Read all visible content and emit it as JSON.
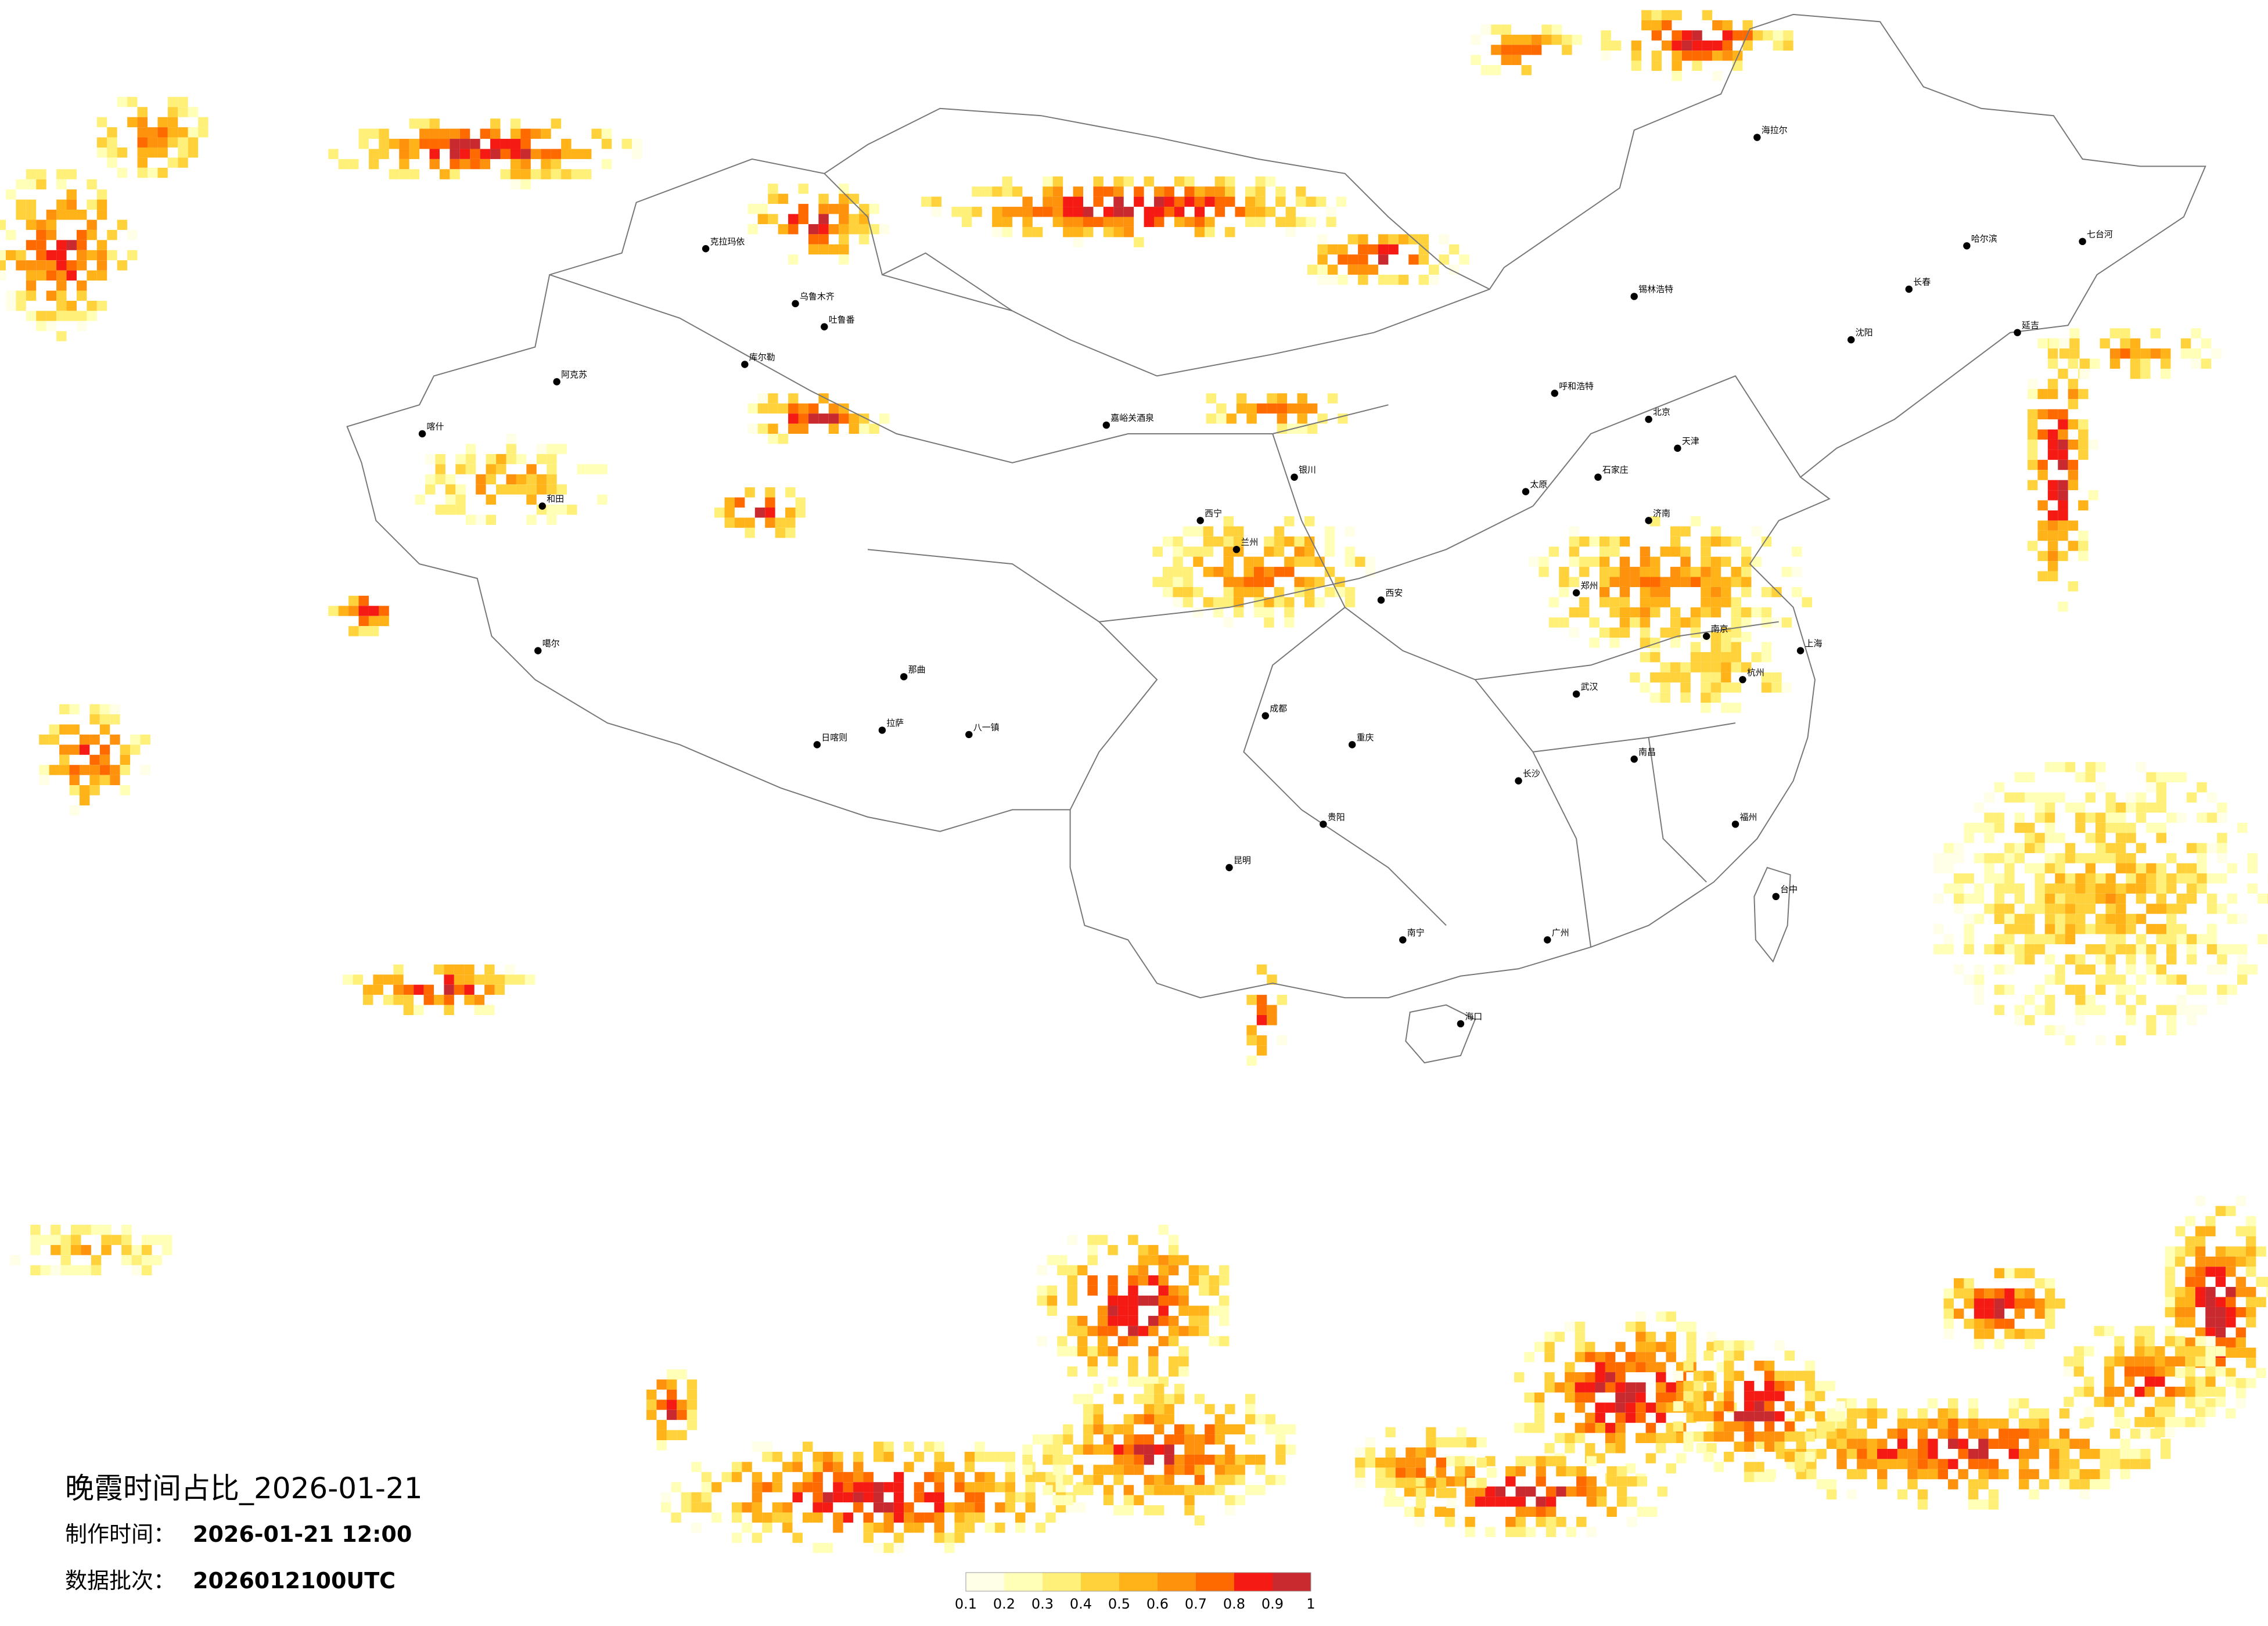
{
  "title": "晚霞时间占比_2026-01-21",
  "production_label": "制作时间：",
  "production_time": "2026-01-21 12:00",
  "batch_label": "数据批次：",
  "batch": "2026012100UTC",
  "colorbar": {
    "ticks": [
      0.1,
      0.2,
      0.3,
      0.4,
      0.5,
      0.6,
      0.7,
      0.8,
      0.9,
      1
    ],
    "colors": [
      "#fffee6",
      "#ffffb8",
      "#fff07a",
      "#ffd23c",
      "#ffb319",
      "#ff920c",
      "#ff6a00",
      "#f51a14",
      "#c82a30"
    ]
  },
  "cities": [
    "克拉玛依",
    "乌鲁木齐",
    "吐鲁番",
    "库尔勒",
    "阿克苏",
    "喀什",
    "和田",
    "噶尔",
    "日喀则",
    "拉萨",
    "八一镇",
    "那曲",
    "嘉峪关酒泉",
    "西宁",
    "兰州",
    "银川",
    "呼和浩特",
    "北京",
    "天津",
    "石家庄",
    "太原",
    "郑州",
    "西安",
    "成都",
    "重庆",
    "昆明",
    "贵阳",
    "南宁",
    "广州",
    "长沙",
    "武汉",
    "南昌",
    "杭州",
    "上海",
    "南京",
    "福州",
    "台中",
    "济南",
    "沈阳",
    "长春",
    "哈尔滨",
    "海口",
    "海拉尔",
    "七台河",
    "锡林浩特",
    "延吉"
  ]
}
